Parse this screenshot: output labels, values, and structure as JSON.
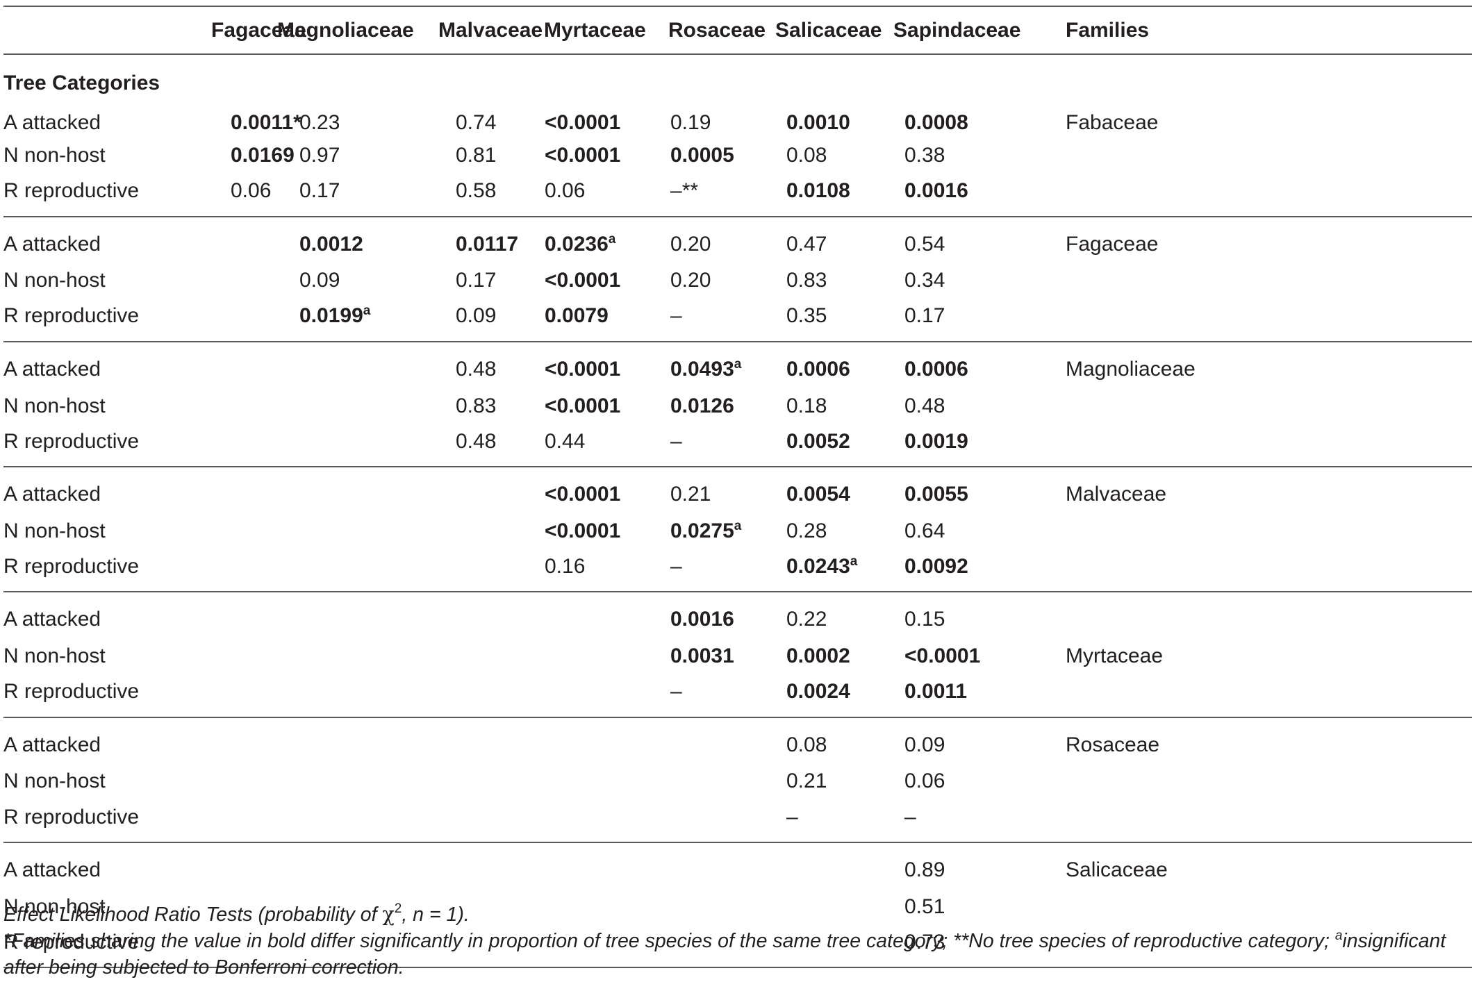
{
  "header": {
    "row_label": "",
    "columns": [
      "Fagaceae",
      "Magnoliaceae",
      "Malvaceae",
      "Myrtaceae",
      "Rosaceae",
      "Salicaceae",
      "Sapindaceae",
      "Families"
    ]
  },
  "caption": "Tree Categories",
  "groups": [
    {
      "family": "Fabaceae",
      "rows": [
        {
          "label": "A attacked",
          "cells": [
            {
              "t": "0.0011",
              "b": true,
              "sfx": "*"
            },
            {
              "t": "0.23"
            },
            {
              "t": "0.74"
            },
            {
              "t": "<0.0001",
              "b": true
            },
            {
              "t": "0.19"
            },
            {
              "t": "0.0010",
              "b": true
            },
            {
              "t": "0.0008",
              "b": true
            }
          ]
        },
        {
          "label": "N non-host",
          "cells": [
            {
              "t": "0.0169",
              "b": true
            },
            {
              "t": "0.97"
            },
            {
              "t": "0.81"
            },
            {
              "t": "<0.0001",
              "b": true
            },
            {
              "t": "0.0005",
              "b": true
            },
            {
              "t": "0.08"
            },
            {
              "t": "0.38"
            }
          ]
        },
        {
          "label": "R reproductive",
          "cells": [
            {
              "t": "0.06"
            },
            {
              "t": "0.17"
            },
            {
              "t": "0.58"
            },
            {
              "t": "0.06"
            },
            {
              "t": "–",
              "sfx": "**"
            },
            {
              "t": "0.0108",
              "b": true
            },
            {
              "t": "0.0016",
              "b": true
            }
          ]
        }
      ]
    },
    {
      "family": "Fagaceae",
      "rows": [
        {
          "label": "A attacked",
          "cells": [
            null,
            {
              "t": "0.0012",
              "b": true
            },
            {
              "t": "0.0117",
              "b": true
            },
            {
              "t": "0.0236",
              "b": true,
              "sup": "a"
            },
            {
              "t": "0.20"
            },
            {
              "t": "0.47"
            },
            {
              "t": "0.54"
            }
          ]
        },
        {
          "label": "N non-host",
          "cells": [
            null,
            {
              "t": "0.09"
            },
            {
              "t": "0.17"
            },
            {
              "t": "<0.0001",
              "b": true
            },
            {
              "t": "0.20"
            },
            {
              "t": "0.83"
            },
            {
              "t": "0.34"
            }
          ]
        },
        {
          "label": "R reproductive",
          "cells": [
            null,
            {
              "t": "0.0199",
              "b": true,
              "sup": "a"
            },
            {
              "t": "0.09"
            },
            {
              "t": "0.0079",
              "b": true
            },
            {
              "t": "–"
            },
            {
              "t": "0.35"
            },
            {
              "t": "0.17"
            }
          ]
        }
      ]
    },
    {
      "family": "Magnoliaceae",
      "rows": [
        {
          "label": "A attacked",
          "cells": [
            null,
            null,
            {
              "t": "0.48"
            },
            {
              "t": "<0.0001",
              "b": true
            },
            {
              "t": "0.0493",
              "b": true,
              "sup": "a"
            },
            {
              "t": "0.0006",
              "b": true
            },
            {
              "t": "0.0006",
              "b": true
            }
          ]
        },
        {
          "label": "N non-host",
          "cells": [
            null,
            null,
            {
              "t": "0.83"
            },
            {
              "t": "<0.0001",
              "b": true
            },
            {
              "t": "0.0126",
              "b": true
            },
            {
              "t": "0.18"
            },
            {
              "t": "0.48"
            }
          ]
        },
        {
          "label": "R reproductive",
          "cells": [
            null,
            null,
            {
              "t": "0.48"
            },
            {
              "t": "0.44"
            },
            {
              "t": "–"
            },
            {
              "t": "0.0052",
              "b": true
            },
            {
              "t": "0.0019",
              "b": true
            }
          ]
        }
      ]
    },
    {
      "family": "Malvaceae",
      "rows": [
        {
          "label": "A attacked",
          "cells": [
            null,
            null,
            null,
            {
              "t": "<0.0001",
              "b": true
            },
            {
              "t": "0.21"
            },
            {
              "t": "0.0054",
              "b": true
            },
            {
              "t": "0.0055",
              "b": true
            }
          ]
        },
        {
          "label": "N non-host",
          "cells": [
            null,
            null,
            null,
            {
              "t": "<0.0001",
              "b": true
            },
            {
              "t": "0.0275",
              "b": true,
              "sup": "a"
            },
            {
              "t": "0.28"
            },
            {
              "t": "0.64"
            }
          ]
        },
        {
          "label": "R reproductive",
          "cells": [
            null,
            null,
            null,
            {
              "t": "0.16"
            },
            {
              "t": "–"
            },
            {
              "t": "0.0243",
              "b": true,
              "sup": "a"
            },
            {
              "t": "0.0092",
              "b": true
            }
          ]
        }
      ]
    },
    {
      "family": "Myrtaceae",
      "rows": [
        {
          "label": "A attacked",
          "cells": [
            null,
            null,
            null,
            null,
            {
              "t": "0.0016",
              "b": true
            },
            {
              "t": "0.22"
            },
            {
              "t": "0.15"
            }
          ]
        },
        {
          "label": "N non-host",
          "cells": [
            null,
            null,
            null,
            null,
            {
              "t": "0.0031",
              "b": true
            },
            {
              "t": "0.0002",
              "b": true
            },
            {
              "t": "<0.0001",
              "b": true
            }
          ]
        },
        {
          "label": "R reproductive",
          "cells": [
            null,
            null,
            null,
            null,
            {
              "t": "–"
            },
            {
              "t": "0.0024",
              "b": true
            },
            {
              "t": "0.0011",
              "b": true
            }
          ]
        }
      ]
    },
    {
      "family": "Rosaceae",
      "rows": [
        {
          "label": "A attacked",
          "cells": [
            null,
            null,
            null,
            null,
            null,
            {
              "t": "0.08"
            },
            {
              "t": "0.09"
            }
          ]
        },
        {
          "label": "N non-host",
          "cells": [
            null,
            null,
            null,
            null,
            null,
            {
              "t": "0.21"
            },
            {
              "t": "0.06"
            }
          ]
        },
        {
          "label": "R reproductive",
          "cells": [
            null,
            null,
            null,
            null,
            null,
            {
              "t": "–"
            },
            {
              "t": "–"
            }
          ]
        }
      ]
    },
    {
      "family": "Salicaceae",
      "rows": [
        {
          "label": "A attacked",
          "cells": [
            null,
            null,
            null,
            null,
            null,
            null,
            {
              "t": "0.89"
            }
          ]
        },
        {
          "label": "N non-host",
          "cells": [
            null,
            null,
            null,
            null,
            null,
            null,
            {
              "t": "0.51"
            }
          ]
        },
        {
          "label": "R reproductive",
          "cells": [
            null,
            null,
            null,
            null,
            null,
            null,
            {
              "t": "0.73"
            }
          ]
        }
      ]
    }
  ],
  "family_row_index": [
    0,
    0,
    0,
    0,
    1,
    0,
    0
  ],
  "notes": {
    "line1_prefix": "Effect Likelihood Ratio Tests (probability of ",
    "line1_chi": "χ",
    "line1_chi_sup": "2",
    "line1_suffix": ", n = 1).",
    "line2_part1": "*Families sharing the value in bold differ significantly in proportion of tree species of the same tree category; **No tree species of reproductive category; ",
    "line2_sup": "a",
    "line2_part2": "insignificant after being subjected to Bonferroni correction."
  }
}
